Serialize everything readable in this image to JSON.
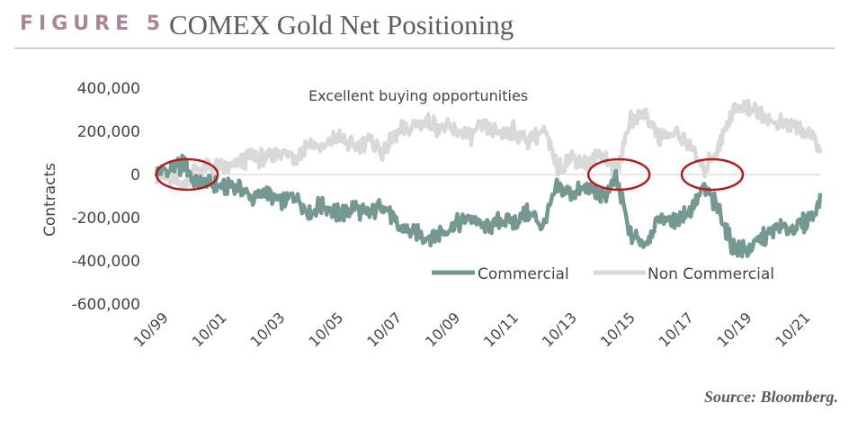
{
  "figure": {
    "label": "FIGURE 5",
    "title": "COMEX Gold Net Positioning",
    "annotation": "Excellent buying opportunities",
    "source": "Source: Bloomberg."
  },
  "colors": {
    "commercial": "#759992",
    "non_commercial": "#d9d9d9",
    "highlight_circle": "#b01e1e",
    "figure_label": "#a98595"
  },
  "chart_data": {
    "type": "line",
    "ylabel": "Contracts",
    "ylim": [
      -600000,
      400000
    ],
    "yticks": [
      400000,
      200000,
      0,
      -200000,
      -400000,
      -600000
    ],
    "ytick_labels": [
      "400,000",
      "200,000",
      "0",
      "-200,000",
      "-400,000",
      "-600,000"
    ],
    "xlim": [
      1999.75,
      2022.5
    ],
    "xticks": [
      1999.75,
      2001.75,
      2003.75,
      2005.75,
      2007.75,
      2009.75,
      2011.75,
      2013.75,
      2015.75,
      2017.75,
      2019.75,
      2021.75
    ],
    "xtick_labels": [
      "10/99",
      "10/01",
      "10/03",
      "10/05",
      "10/07",
      "10/09",
      "10/11",
      "10/13",
      "10/15",
      "10/17",
      "10/19",
      "10/21"
    ],
    "legend_position": "bottom-right",
    "highlighted_periods": [
      2000.8,
      2015.6,
      2018.8
    ],
    "series": [
      {
        "name": "Commercial",
        "color": "#759992",
        "x": [
          1999.75,
          2000.25,
          2000.75,
          2001.0,
          2001.5,
          2002.0,
          2002.5,
          2003.0,
          2003.5,
          2004.0,
          2004.5,
          2005.0,
          2005.5,
          2006.0,
          2006.5,
          2007.0,
          2007.5,
          2008.0,
          2008.5,
          2009.0,
          2009.5,
          2010.0,
          2010.5,
          2011.0,
          2011.5,
          2012.0,
          2012.5,
          2013.0,
          2013.5,
          2014.0,
          2014.5,
          2015.0,
          2015.5,
          2016.0,
          2016.5,
          2017.0,
          2017.5,
          2018.0,
          2018.5,
          2019.0,
          2019.5,
          2020.0,
          2020.5,
          2021.0,
          2021.5,
          2022.0,
          2022.5
        ],
        "values": [
          0,
          20000,
          50000,
          -30000,
          -40000,
          -60000,
          -50000,
          -110000,
          -80000,
          -130000,
          -100000,
          -170000,
          -140000,
          -190000,
          -150000,
          -190000,
          -130000,
          -240000,
          -270000,
          -290000,
          -270000,
          -230000,
          -200000,
          -250000,
          -210000,
          -220000,
          -180000,
          -240000,
          -60000,
          -90000,
          -60000,
          -110000,
          -20000,
          -280000,
          -320000,
          -200000,
          -220000,
          -170000,
          -60000,
          -160000,
          -340000,
          -350000,
          -300000,
          -250000,
          -250000,
          -220000,
          -130000
        ]
      },
      {
        "name": "Non Commercial",
        "color": "#d9d9d9",
        "x": [
          1999.75,
          2000.25,
          2000.75,
          2001.0,
          2001.5,
          2002.0,
          2002.5,
          2003.0,
          2003.5,
          2004.0,
          2004.5,
          2005.0,
          2005.5,
          2006.0,
          2006.5,
          2007.0,
          2007.5,
          2008.0,
          2008.5,
          2009.0,
          2009.5,
          2010.0,
          2010.5,
          2011.0,
          2011.5,
          2012.0,
          2012.5,
          2013.0,
          2013.5,
          2014.0,
          2014.5,
          2015.0,
          2015.5,
          2016.0,
          2016.5,
          2017.0,
          2017.5,
          2018.0,
          2018.5,
          2019.0,
          2019.5,
          2020.0,
          2020.5,
          2021.0,
          2021.5,
          2022.0,
          2022.5
        ],
        "values": [
          0,
          -20000,
          -50000,
          20000,
          30000,
          40000,
          40000,
          90000,
          70000,
          110000,
          80000,
          150000,
          120000,
          180000,
          120000,
          160000,
          100000,
          200000,
          220000,
          240000,
          220000,
          200000,
          180000,
          220000,
          190000,
          200000,
          160000,
          210000,
          40000,
          80000,
          50000,
          100000,
          10000,
          250000,
          290000,
          170000,
          190000,
          150000,
          20000,
          130000,
          300000,
          320000,
          280000,
          230000,
          230000,
          200000,
          120000
        ]
      }
    ]
  }
}
